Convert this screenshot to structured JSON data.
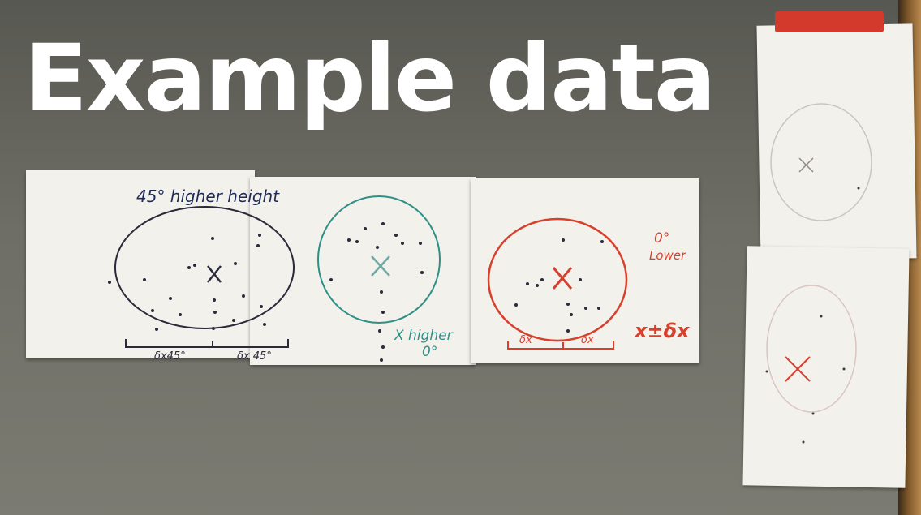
{
  "title": "Example data",
  "sheets": {
    "sheet1": {
      "heading": "45° higher height",
      "label_left": "δx45°",
      "label_right": "δx 45°"
    },
    "sheet2": {
      "label_line1": "X higher",
      "label_line2": "0°"
    },
    "sheet3": {
      "label_top_line1": "0°",
      "label_top_line2": "Lower",
      "label_formula": "x±δx",
      "label_left": "δx",
      "label_right": "δx"
    }
  },
  "colors": {
    "ink_black": "#2a2a3a",
    "ink_teal": "#2f8f86",
    "ink_red": "#d8402e",
    "paper": "#f2f1ec"
  }
}
